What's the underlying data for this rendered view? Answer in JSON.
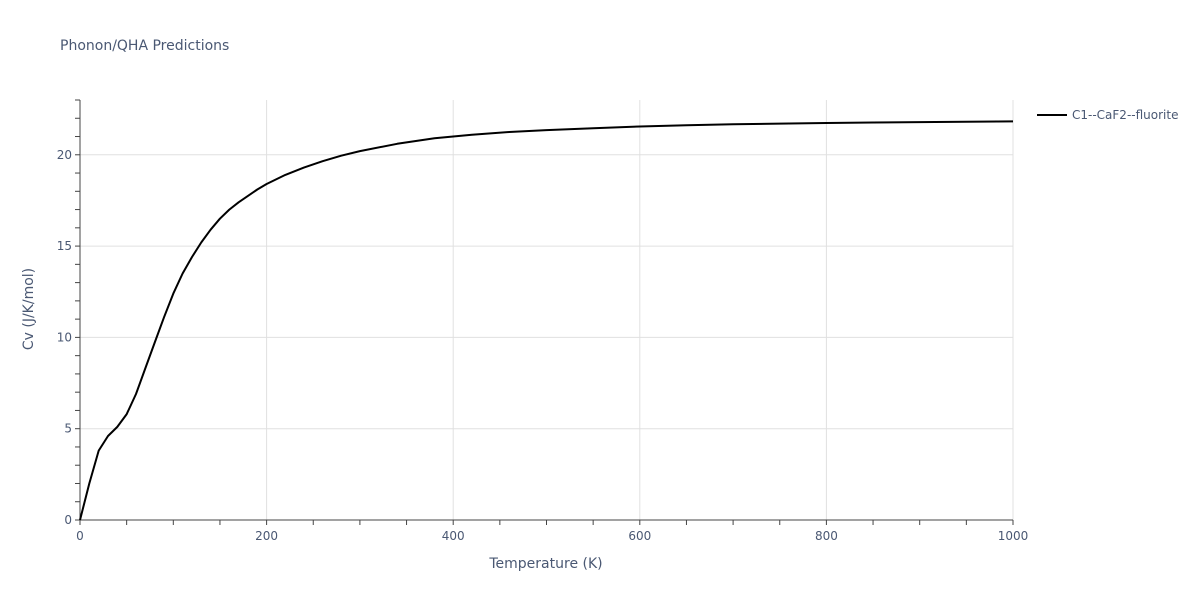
{
  "chart_data": {
    "type": "line",
    "title": "Phonon/QHA Predictions",
    "xlabel": "Temperature (K)",
    "ylabel": "Cv (J/K/mol)",
    "xlim": [
      0,
      1000
    ],
    "ylim": [
      0,
      23
    ],
    "x_ticks": [
      0,
      200,
      400,
      600,
      800,
      1000
    ],
    "y_ticks": [
      0,
      5,
      10,
      15,
      20
    ],
    "x_minor_step": 50,
    "y_minor_step": 1,
    "grid": true,
    "legend_position": "top-right-outside",
    "series": [
      {
        "name": "C1--CaF2--fluorite",
        "color": "#000000",
        "x": [
          0,
          10,
          20,
          30,
          40,
          50,
          60,
          70,
          80,
          90,
          100,
          110,
          120,
          130,
          140,
          150,
          160,
          170,
          180,
          190,
          200,
          220,
          240,
          260,
          280,
          300,
          340,
          380,
          420,
          460,
          500,
          550,
          600,
          650,
          700,
          750,
          800,
          850,
          900,
          950,
          1000
        ],
        "y": [
          0,
          2.0,
          3.8,
          4.6,
          5.1,
          5.8,
          6.9,
          8.3,
          9.7,
          11.1,
          12.4,
          13.5,
          14.4,
          15.2,
          15.9,
          16.5,
          17.0,
          17.4,
          17.75,
          18.1,
          18.4,
          18.9,
          19.3,
          19.65,
          19.95,
          20.2,
          20.6,
          20.9,
          21.1,
          21.25,
          21.35,
          21.45,
          21.55,
          21.62,
          21.67,
          21.71,
          21.74,
          21.77,
          21.79,
          21.81,
          21.83
        ]
      }
    ]
  }
}
